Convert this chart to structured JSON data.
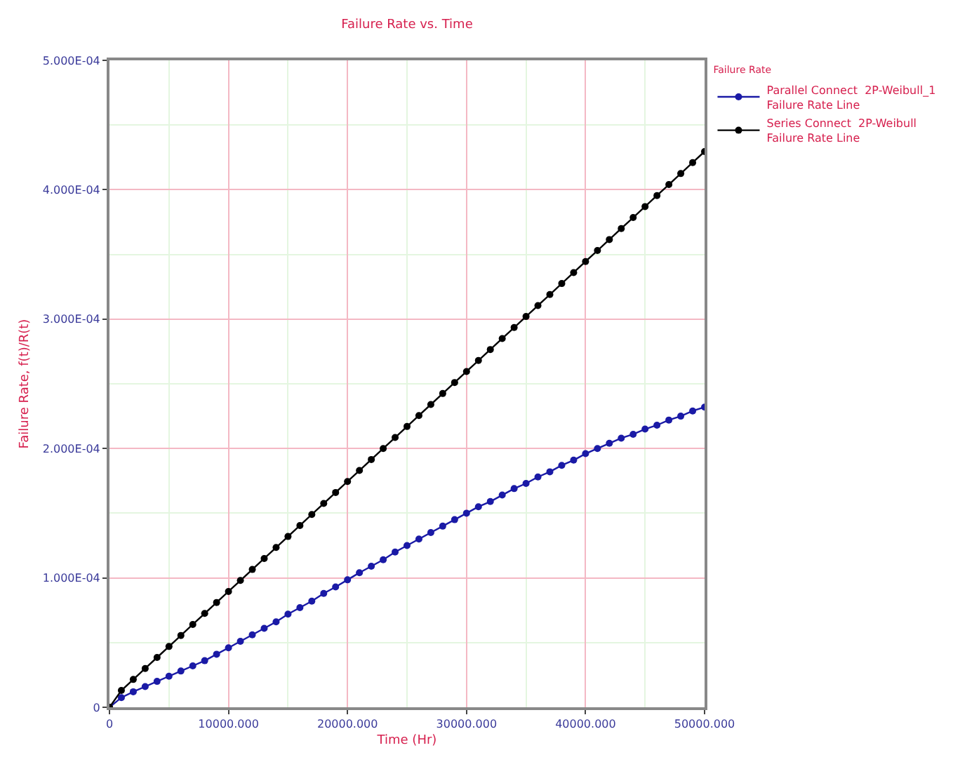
{
  "chart_data": {
    "type": "line",
    "title": "Failure Rate vs. Time",
    "xlabel": "Time (Hr)",
    "ylabel": "Failure Rate, f(t)/R(t)",
    "legend_title": "Failure Rate",
    "x": [
      0,
      1000,
      2000,
      3000,
      4000,
      5000,
      6000,
      7000,
      8000,
      9000,
      10000,
      11000,
      12000,
      13000,
      14000,
      15000,
      16000,
      17000,
      18000,
      19000,
      20000,
      21000,
      22000,
      23000,
      24000,
      25000,
      26000,
      27000,
      28000,
      29000,
      30000,
      31000,
      32000,
      33000,
      34000,
      35000,
      36000,
      37000,
      38000,
      39000,
      40000,
      41000,
      42000,
      43000,
      44000,
      45000,
      46000,
      47000,
      48000,
      49000,
      50000
    ],
    "series": [
      {
        "name": "Parallel Connect  2P-Weibull_1\nFailure Rate Line",
        "color": "#1a1aa6",
        "values": [
          0,
          7.5e-06,
          1.2e-05,
          1.6e-05,
          2e-05,
          2.4e-05,
          2.8e-05,
          3.2e-05,
          3.6e-05,
          4.1e-05,
          4.6e-05,
          5.1e-05,
          5.6e-05,
          6.1e-05,
          6.6e-05,
          7.2e-05,
          7.7e-05,
          8.2e-05,
          8.8e-05,
          9.3e-05,
          9.85e-05,
          0.000104,
          0.000109,
          0.000114,
          0.00012,
          0.000125,
          0.00013,
          0.000135,
          0.00014,
          0.000145,
          0.00015,
          0.000155,
          0.000159,
          0.000164,
          0.000169,
          0.000173,
          0.000178,
          0.000182,
          0.000187,
          0.000191,
          0.000196,
          0.0002,
          0.000204,
          0.000208,
          0.000211,
          0.000215,
          0.000218,
          0.000222,
          0.000225,
          0.000229,
          0.000232
        ]
      },
      {
        "name": "Series Connect  2P-Weibull\nFailure Rate Line",
        "color": "#000000",
        "values": [
          0,
          1.3e-05,
          2.15e-05,
          3e-05,
          3.85e-05,
          4.7e-05,
          5.55e-05,
          6.4e-05,
          7.25e-05,
          8.1e-05,
          8.95e-05,
          9.8e-05,
          0.0001065,
          0.000115,
          0.0001235,
          0.000132,
          0.0001405,
          0.000149,
          0.0001575,
          0.000166,
          0.0001745,
          0.000183,
          0.0001915,
          0.0002,
          0.0002085,
          0.000217,
          0.0002255,
          0.000234,
          0.0002425,
          0.000251,
          0.0002595,
          0.000268,
          0.0002765,
          0.000285,
          0.0002935,
          0.000302,
          0.0003105,
          0.000319,
          0.0003275,
          0.000336,
          0.0003445,
          0.000353,
          0.0003615,
          0.00037,
          0.0003785,
          0.000387,
          0.0003955,
          0.000404,
          0.0004125,
          0.000421,
          0.0004295
        ]
      }
    ],
    "xlim": [
      0,
      50000
    ],
    "xticks": [
      0,
      {
        "value": 10000,
        "label": "10000.000"
      },
      {
        "value": 20000,
        "label": "20000.000"
      },
      {
        "value": 30000,
        "label": "30000.000"
      },
      {
        "value": 40000,
        "label": "40000.000"
      },
      {
        "value": 50000,
        "label": "50000.000"
      }
    ],
    "ylim": [
      0,
      0.0005
    ],
    "yticks": [
      0,
      {
        "value": 0.0001,
        "label": "1.000E-04"
      },
      {
        "value": 0.0002,
        "label": "2.000E-04"
      },
      {
        "value": 0.0003,
        "label": "3.000E-04"
      },
      {
        "value": 0.0004,
        "label": "4.000E-04"
      },
      {
        "value": 0.0005,
        "label": "5.000E-04"
      }
    ],
    "grid": true,
    "legend": "top right",
    "marker": "circle",
    "line_style": "solid"
  }
}
